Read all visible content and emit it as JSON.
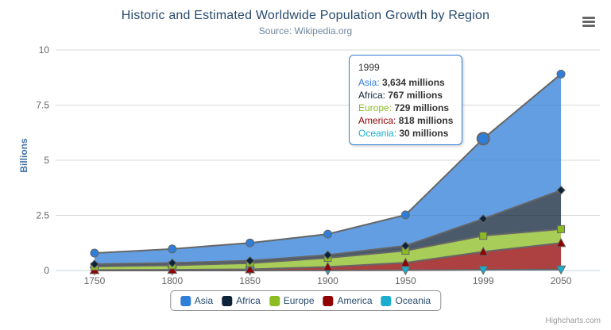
{
  "chart_data": {
    "type": "area",
    "stacking": "normal",
    "title": "Historic and Estimated Worldwide Population Growth by Region",
    "subtitle": "Source: Wikipedia.org",
    "categories": [
      "1750",
      "1800",
      "1850",
      "1900",
      "1950",
      "1999",
      "2050"
    ],
    "unit": "millions",
    "series": [
      {
        "name": "Asia",
        "color": "#2f7ed8",
        "marker": "circle",
        "values": [
          502,
          635,
          809,
          947,
          1402,
          3634,
          5268
        ]
      },
      {
        "name": "Africa",
        "color": "#0d233a",
        "marker": "diamond",
        "values": [
          106,
          107,
          111,
          133,
          221,
          767,
          1766
        ]
      },
      {
        "name": "Europe",
        "color": "#8bbc21",
        "marker": "square",
        "values": [
          163,
          203,
          276,
          408,
          547,
          729,
          628
        ]
      },
      {
        "name": "America",
        "color": "#910000",
        "marker": "triangle",
        "values": [
          18,
          31,
          54,
          156,
          339,
          818,
          1201
        ]
      },
      {
        "name": "Oceania",
        "color": "#1aadce",
        "marker": "triangle-down",
        "values": [
          2,
          2,
          2,
          6,
          13,
          30,
          46
        ]
      }
    ],
    "stack_order_bottom_to_top": [
      "Oceania",
      "America",
      "Europe",
      "Africa",
      "Asia"
    ],
    "fill_opacity": 0.75,
    "line_color": "#666666",
    "yAxis": {
      "title": "Billions",
      "ticks": [
        0,
        2.5,
        5,
        7.5,
        10
      ],
      "max": 10,
      "unit_divisor": 1000
    },
    "xlabel": "",
    "ylabel": "Billions",
    "ylim": [
      0,
      10
    ],
    "grid": true,
    "legend_position": "bottom"
  },
  "tooltip": {
    "header": "1999",
    "border_color": "#2f7ed8",
    "rows": [
      {
        "name": "Asia",
        "value": "3,634 millions",
        "color": "#2f7ed8"
      },
      {
        "name": "Africa",
        "value": "767 millions",
        "color": "#0d233a"
      },
      {
        "name": "Europe",
        "value": "729 millions",
        "color": "#8bbc21"
      },
      {
        "name": "America",
        "value": "818 millions",
        "color": "#910000"
      },
      {
        "name": "Oceania",
        "value": "30 millions",
        "color": "#1aadce"
      }
    ]
  },
  "hover": {
    "series": "Asia",
    "category": "1999"
  },
  "icons": {
    "menu": "hamburger-icon"
  },
  "credits": "Highcharts.com",
  "colors": {
    "title": "#274b6d",
    "subtitle": "#6d869f",
    "y_axis_title": "#4572a7",
    "axis_label": "#666666",
    "grid": "#d8d8d8",
    "axis_line": "#c0d0e0",
    "legend_text": "#274b6d",
    "legend_border": "#909090",
    "tooltip_text": "#333333",
    "credits_text": "#999999",
    "menu_icon": "#666666",
    "background": "#ffffff"
  }
}
